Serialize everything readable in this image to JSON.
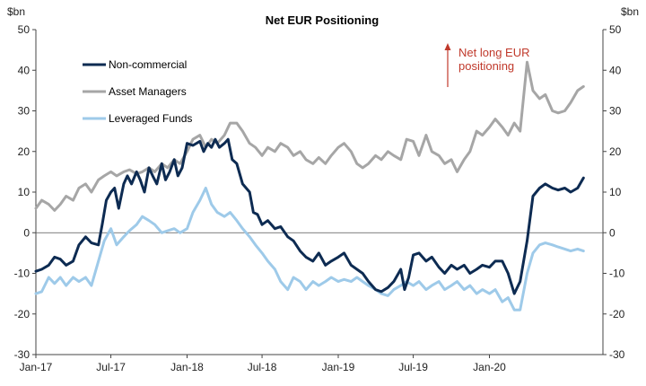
{
  "chart_data": {
    "type": "line",
    "title": "Net EUR  Positioning",
    "ylabel_left": "$bn",
    "ylabel_right": "$bn",
    "ylim": [
      -30,
      50
    ],
    "yticks": [
      -30,
      -20,
      -10,
      0,
      10,
      20,
      30,
      40,
      50
    ],
    "xlim": [
      "2017-01",
      "2020-10"
    ],
    "xticks": [
      {
        "label": "Jan-17",
        "x": "2017-01"
      },
      {
        "label": "Jul-17",
        "x": "2017-07"
      },
      {
        "label": "Jan-18",
        "x": "2018-01"
      },
      {
        "label": "Jul-18",
        "x": "2018-07"
      },
      {
        "label": "Jan-19",
        "x": "2019-01"
      },
      {
        "label": "Jul-19",
        "x": "2019-07"
      },
      {
        "label": "Jan-20",
        "x": "2020-01"
      }
    ],
    "legend_position": "top-left",
    "annotation": {
      "lines": [
        "Net long EUR",
        "positioning"
      ],
      "color": "#c0392b"
    },
    "series": [
      {
        "name": "Non-commercial",
        "color": "#0d2b52",
        "points": [
          [
            "2017-01",
            -9.5
          ],
          [
            "2017-01-15",
            -9
          ],
          [
            "2017-02",
            -8
          ],
          [
            "2017-02-15",
            -6
          ],
          [
            "2017-03",
            -6.5
          ],
          [
            "2017-03-15",
            -8
          ],
          [
            "2017-04",
            -7
          ],
          [
            "2017-04-15",
            -3
          ],
          [
            "2017-05",
            -1
          ],
          [
            "2017-05-15",
            -2.5
          ],
          [
            "2017-06",
            -3
          ],
          [
            "2017-06-10",
            2
          ],
          [
            "2017-06-20",
            8
          ],
          [
            "2017-07",
            10
          ],
          [
            "2017-07-10",
            11
          ],
          [
            "2017-07-20",
            6
          ],
          [
            "2017-08",
            12
          ],
          [
            "2017-08-10",
            14
          ],
          [
            "2017-08-20",
            12
          ],
          [
            "2017-09",
            15
          ],
          [
            "2017-09-10",
            13
          ],
          [
            "2017-09-20",
            10
          ],
          [
            "2017-10",
            16
          ],
          [
            "2017-10-10",
            14
          ],
          [
            "2017-10-20",
            12
          ],
          [
            "2017-11",
            17
          ],
          [
            "2017-11-10",
            13
          ],
          [
            "2017-11-20",
            15
          ],
          [
            "2017-12",
            18
          ],
          [
            "2017-12-10",
            14
          ],
          [
            "2017-12-20",
            16
          ],
          [
            "2018-01",
            22
          ],
          [
            "2018-01-15",
            21.5
          ],
          [
            "2018-02",
            22.5
          ],
          [
            "2018-02-10",
            20
          ],
          [
            "2018-02-20",
            22
          ],
          [
            "2018-03",
            21
          ],
          [
            "2018-03-10",
            23
          ],
          [
            "2018-03-20",
            21
          ],
          [
            "2018-04",
            22
          ],
          [
            "2018-04-10",
            23
          ],
          [
            "2018-04-20",
            18
          ],
          [
            "2018-05",
            17
          ],
          [
            "2018-05-15",
            12
          ],
          [
            "2018-06",
            10
          ],
          [
            "2018-06-10",
            5
          ],
          [
            "2018-06-20",
            4.5
          ],
          [
            "2018-07",
            2
          ],
          [
            "2018-07-15",
            3
          ],
          [
            "2018-08",
            1
          ],
          [
            "2018-08-15",
            1.5
          ],
          [
            "2018-09",
            -1
          ],
          [
            "2018-09-15",
            -2
          ],
          [
            "2018-10",
            -4.5
          ],
          [
            "2018-10-15",
            -6
          ],
          [
            "2018-11",
            -7
          ],
          [
            "2018-11-15",
            -5
          ],
          [
            "2018-12",
            -8
          ],
          [
            "2018-12-15",
            -7
          ],
          [
            "2019-01",
            -6
          ],
          [
            "2019-01-15",
            -5
          ],
          [
            "2019-02",
            -8
          ],
          [
            "2019-02-15",
            -9
          ],
          [
            "2019-03",
            -10
          ],
          [
            "2019-03-15",
            -12
          ],
          [
            "2019-04",
            -14
          ],
          [
            "2019-04-15",
            -14.5
          ],
          [
            "2019-05",
            -13.5
          ],
          [
            "2019-05-15",
            -12
          ],
          [
            "2019-06",
            -9
          ],
          [
            "2019-06-10",
            -14
          ],
          [
            "2019-06-20",
            -11
          ],
          [
            "2019-07",
            -5.5
          ],
          [
            "2019-07-15",
            -5
          ],
          [
            "2019-08",
            -7
          ],
          [
            "2019-08-15",
            -6
          ],
          [
            "2019-09",
            -8.5
          ],
          [
            "2019-09-15",
            -10
          ],
          [
            "2019-10",
            -8
          ],
          [
            "2019-10-15",
            -9
          ],
          [
            "2019-11",
            -8
          ],
          [
            "2019-11-15",
            -10
          ],
          [
            "2019-12",
            -9
          ],
          [
            "2019-12-15",
            -8
          ],
          [
            "2020-01",
            -8.5
          ],
          [
            "2020-01-15",
            -7
          ],
          [
            "2020-02",
            -7
          ],
          [
            "2020-02-15",
            -10
          ],
          [
            "2020-03",
            -15
          ],
          [
            "2020-03-15",
            -12
          ],
          [
            "2020-04",
            -2
          ],
          [
            "2020-04-15",
            9
          ],
          [
            "2020-05",
            11
          ],
          [
            "2020-05-15",
            12
          ],
          [
            "2020-06",
            11
          ],
          [
            "2020-06-15",
            10.5
          ],
          [
            "2020-07",
            11
          ],
          [
            "2020-07-15",
            10
          ],
          [
            "2020-08",
            11
          ],
          [
            "2020-08-15",
            13.5
          ]
        ]
      },
      {
        "name": "Asset Managers",
        "color": "#a6a6a6",
        "points": [
          [
            "2017-01",
            6
          ],
          [
            "2017-01-15",
            8
          ],
          [
            "2017-02",
            7
          ],
          [
            "2017-02-15",
            5.5
          ],
          [
            "2017-03",
            7
          ],
          [
            "2017-03-15",
            9
          ],
          [
            "2017-04",
            8
          ],
          [
            "2017-04-15",
            11
          ],
          [
            "2017-05",
            12
          ],
          [
            "2017-05-15",
            10
          ],
          [
            "2017-06",
            13
          ],
          [
            "2017-06-15",
            14
          ],
          [
            "2017-07",
            15
          ],
          [
            "2017-07-15",
            14
          ],
          [
            "2017-08",
            15
          ],
          [
            "2017-08-15",
            15.5
          ],
          [
            "2017-09",
            14.5
          ],
          [
            "2017-09-15",
            15
          ],
          [
            "2017-10",
            16
          ],
          [
            "2017-10-15",
            15
          ],
          [
            "2017-11",
            17
          ],
          [
            "2017-11-15",
            16
          ],
          [
            "2017-12",
            18
          ],
          [
            "2017-12-15",
            17
          ],
          [
            "2018-01",
            20
          ],
          [
            "2018-01-15",
            23
          ],
          [
            "2018-02",
            24
          ],
          [
            "2018-02-15",
            21
          ],
          [
            "2018-03",
            23
          ],
          [
            "2018-03-15",
            22
          ],
          [
            "2018-04",
            24
          ],
          [
            "2018-04-15",
            27
          ],
          [
            "2018-05",
            27
          ],
          [
            "2018-05-15",
            25
          ],
          [
            "2018-06",
            22
          ],
          [
            "2018-06-15",
            21
          ],
          [
            "2018-07",
            19
          ],
          [
            "2018-07-15",
            21
          ],
          [
            "2018-08",
            20
          ],
          [
            "2018-08-15",
            22
          ],
          [
            "2018-09",
            21
          ],
          [
            "2018-09-15",
            19
          ],
          [
            "2018-10",
            20
          ],
          [
            "2018-10-15",
            18
          ],
          [
            "2018-11",
            17
          ],
          [
            "2018-11-15",
            18.5
          ],
          [
            "2018-12",
            17
          ],
          [
            "2018-12-15",
            19
          ],
          [
            "2019-01",
            21
          ],
          [
            "2019-01-15",
            22
          ],
          [
            "2019-02",
            20
          ],
          [
            "2019-02-15",
            17
          ],
          [
            "2019-03",
            16
          ],
          [
            "2019-03-15",
            17
          ],
          [
            "2019-04",
            19
          ],
          [
            "2019-04-15",
            18
          ],
          [
            "2019-05",
            20
          ],
          [
            "2019-05-15",
            19
          ],
          [
            "2019-06",
            18
          ],
          [
            "2019-06-15",
            23
          ],
          [
            "2019-07",
            22.5
          ],
          [
            "2019-07-15",
            19
          ],
          [
            "2019-08",
            24
          ],
          [
            "2019-08-15",
            20
          ],
          [
            "2019-09",
            19
          ],
          [
            "2019-09-15",
            17
          ],
          [
            "2019-10",
            18
          ],
          [
            "2019-10-15",
            15
          ],
          [
            "2019-11",
            18
          ],
          [
            "2019-11-15",
            20
          ],
          [
            "2019-12",
            25
          ],
          [
            "2019-12-15",
            24
          ],
          [
            "2020-01",
            26
          ],
          [
            "2020-01-15",
            28
          ],
          [
            "2020-02",
            26
          ],
          [
            "2020-02-15",
            24
          ],
          [
            "2020-03",
            27
          ],
          [
            "2020-03-15",
            25
          ],
          [
            "2020-04",
            42
          ],
          [
            "2020-04-15",
            35
          ],
          [
            "2020-05",
            33
          ],
          [
            "2020-05-15",
            34
          ],
          [
            "2020-06",
            30
          ],
          [
            "2020-06-15",
            29.5
          ],
          [
            "2020-07",
            30
          ],
          [
            "2020-07-15",
            32
          ],
          [
            "2020-08",
            35
          ],
          [
            "2020-08-15",
            36
          ]
        ]
      },
      {
        "name": "Leveraged Funds",
        "color": "#9ecae9",
        "points": [
          [
            "2017-01",
            -15
          ],
          [
            "2017-01-15",
            -14.5
          ],
          [
            "2017-02",
            -11
          ],
          [
            "2017-02-15",
            -12.5
          ],
          [
            "2017-03",
            -11
          ],
          [
            "2017-03-15",
            -13
          ],
          [
            "2017-04",
            -11
          ],
          [
            "2017-04-15",
            -12
          ],
          [
            "2017-05",
            -11
          ],
          [
            "2017-05-15",
            -13
          ],
          [
            "2017-06",
            -7
          ],
          [
            "2017-06-15",
            -2
          ],
          [
            "2017-07",
            1
          ],
          [
            "2017-07-15",
            -3
          ],
          [
            "2017-08",
            -1
          ],
          [
            "2017-08-15",
            0.5
          ],
          [
            "2017-09",
            2
          ],
          [
            "2017-09-15",
            4
          ],
          [
            "2017-10",
            3
          ],
          [
            "2017-10-15",
            2
          ],
          [
            "2017-11",
            0
          ],
          [
            "2017-11-15",
            0.5
          ],
          [
            "2017-12",
            1
          ],
          [
            "2017-12-15",
            0
          ],
          [
            "2018-01",
            1
          ],
          [
            "2018-01-15",
            5
          ],
          [
            "2018-02",
            8
          ],
          [
            "2018-02-15",
            11
          ],
          [
            "2018-03",
            7
          ],
          [
            "2018-03-15",
            5
          ],
          [
            "2018-04",
            4
          ],
          [
            "2018-04-15",
            5
          ],
          [
            "2018-05",
            3
          ],
          [
            "2018-05-15",
            1
          ],
          [
            "2018-06",
            -1
          ],
          [
            "2018-06-15",
            -3
          ],
          [
            "2018-07",
            -5
          ],
          [
            "2018-07-15",
            -7
          ],
          [
            "2018-08",
            -9
          ],
          [
            "2018-08-15",
            -12
          ],
          [
            "2018-09",
            -14
          ],
          [
            "2018-09-15",
            -11
          ],
          [
            "2018-10",
            -12
          ],
          [
            "2018-10-15",
            -14
          ],
          [
            "2018-11",
            -12
          ],
          [
            "2018-11-15",
            -13
          ],
          [
            "2018-12",
            -12
          ],
          [
            "2018-12-15",
            -11
          ],
          [
            "2019-01",
            -12
          ],
          [
            "2019-01-15",
            -11.5
          ],
          [
            "2019-02",
            -12
          ],
          [
            "2019-02-15",
            -11
          ],
          [
            "2019-03",
            -12
          ],
          [
            "2019-03-15",
            -13
          ],
          [
            "2019-04",
            -14
          ],
          [
            "2019-04-15",
            -15
          ],
          [
            "2019-05",
            -15.5
          ],
          [
            "2019-05-15",
            -14
          ],
          [
            "2019-06",
            -13
          ],
          [
            "2019-06-15",
            -12
          ],
          [
            "2019-07",
            -13
          ],
          [
            "2019-07-15",
            -12
          ],
          [
            "2019-08",
            -14
          ],
          [
            "2019-08-15",
            -13
          ],
          [
            "2019-09",
            -12
          ],
          [
            "2019-09-15",
            -14
          ],
          [
            "2019-10",
            -13
          ],
          [
            "2019-10-15",
            -12
          ],
          [
            "2019-11",
            -14
          ],
          [
            "2019-11-15",
            -13
          ],
          [
            "2019-12",
            -15
          ],
          [
            "2019-12-15",
            -14
          ],
          [
            "2020-01",
            -15
          ],
          [
            "2020-01-15",
            -14
          ],
          [
            "2020-02",
            -17
          ],
          [
            "2020-02-15",
            -16
          ],
          [
            "2020-03",
            -19
          ],
          [
            "2020-03-15",
            -19
          ],
          [
            "2020-04",
            -10
          ],
          [
            "2020-04-15",
            -5
          ],
          [
            "2020-05",
            -3
          ],
          [
            "2020-05-15",
            -2.5
          ],
          [
            "2020-06",
            -3
          ],
          [
            "2020-06-15",
            -3.5
          ],
          [
            "2020-07",
            -4
          ],
          [
            "2020-07-15",
            -4.5
          ],
          [
            "2020-08",
            -4
          ],
          [
            "2020-08-15",
            -4.5
          ]
        ]
      }
    ]
  }
}
